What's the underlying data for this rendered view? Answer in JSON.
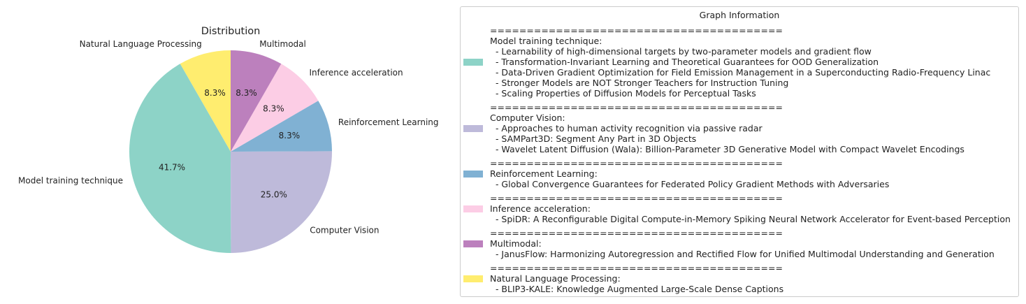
{
  "chart_data": {
    "type": "pie",
    "title": "Distribution",
    "slices": [
      {
        "label": "Natural Language Processing",
        "value": 8.3,
        "display": "8.3%",
        "color": "#ffed6f"
      },
      {
        "label": "Model training technique",
        "value": 41.7,
        "display": "41.7%",
        "color": "#8dd3c7"
      },
      {
        "label": "Computer Vision",
        "value": 25.0,
        "display": "25.0%",
        "color": "#bebada"
      },
      {
        "label": "Reinforcement Learning",
        "value": 8.3,
        "display": "8.3%",
        "color": "#80b1d3"
      },
      {
        "label": "Inference acceleration",
        "value": 8.3,
        "display": "8.3%",
        "color": "#fccde5"
      },
      {
        "label": "Multimodal",
        "value": 8.3,
        "display": "8.3%",
        "color": "#bc80bd"
      }
    ]
  },
  "legend": {
    "title": "Graph Information",
    "separator": "========================================",
    "groups": [
      {
        "name": "Model training technique:",
        "color": "#8dd3c7",
        "items": [
          "  - Learnability of high-dimensional targets by two-parameter models and gradient flow",
          "  - Transformation-Invariant Learning and Theoretical Guarantees for OOD Generalization",
          "  - Data-Driven Gradient Optimization for Field Emission Management in a Superconducting Radio-Frequency Linac",
          "  - Stronger Models are NOT Stronger Teachers for Instruction Tuning",
          "  - Scaling Properties of Diffusion Models for Perceptual Tasks"
        ]
      },
      {
        "name": "Computer Vision:",
        "color": "#bebada",
        "items": [
          "  - Approaches to human activity recognition via passive radar",
          "  - SAMPart3D: Segment Any Part in 3D Objects",
          "  - Wavelet Latent Diffusion (Wala): Billion-Parameter 3D Generative Model with Compact Wavelet Encodings"
        ]
      },
      {
        "name": "Reinforcement Learning:",
        "color": "#80b1d3",
        "items": [
          "  - Global Convergence Guarantees for Federated Policy Gradient Methods with Adversaries"
        ]
      },
      {
        "name": "Inference acceleration:",
        "color": "#fccde5",
        "items": [
          "  - SpiDR: A Reconfigurable Digital Compute-in-Memory Spiking Neural Network Accelerator for Event-based Perception"
        ]
      },
      {
        "name": "Multimodal:",
        "color": "#bc80bd",
        "items": [
          "  - JanusFlow: Harmonizing Autoregression and Rectified Flow for Unified Multimodal Understanding and Generation"
        ]
      },
      {
        "name": "Natural Language Processing:",
        "color": "#ffed6f",
        "items": [
          "  - BLIP3-KALE: Knowledge Augmented Large-Scale Dense Captions"
        ]
      }
    ]
  }
}
